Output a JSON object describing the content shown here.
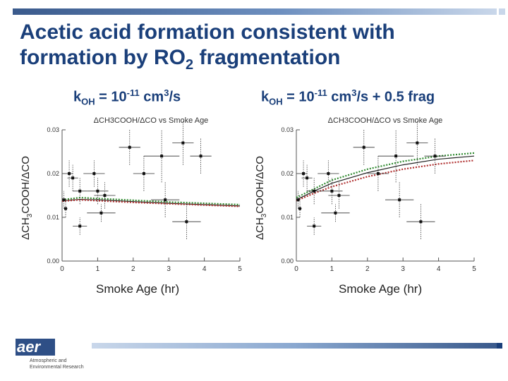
{
  "title_line1": "Acetic acid formation consistent with",
  "title_line2_pre": "formation by RO",
  "title_line2_sub": "2",
  "title_line2_post": " fragmentation",
  "panels": [
    {
      "k": "k",
      "k_sub": "OH",
      "eq": " = 10",
      "exp": "-11",
      "unit": " cm",
      "unit_sup": "3",
      "tail": "/s"
    },
    {
      "k": "k",
      "k_sub": "OH",
      "eq": " = 10",
      "exp": "-11",
      "unit": " cm",
      "unit_sup": "3",
      "tail": "/s + 0.5 frag"
    }
  ],
  "ylabel_pre": "ΔCH",
  "ylabel_sub": "3",
  "ylabel_post": "COOH/ΔCO",
  "xlabel": "Smoke Age (hr)",
  "logo": {
    "text": "aer",
    "line1": "Atmospheric and",
    "line2": "Environmental Research"
  },
  "colors": {
    "title": "#1a3f7a",
    "green_model": "#2f8a2f",
    "dark_model": "#222222",
    "red_model": "#b03030"
  },
  "chart_data": [
    {
      "type": "scatter",
      "title": "ΔCH3COOH/ΔCO vs Smoke Age",
      "xlabel": "Smoke Age (hr)",
      "ylabel": "ΔCH3COOH/ΔCO",
      "xlim": [
        0,
        5
      ],
      "ylim": [
        0,
        0.03
      ],
      "xticks": [
        "0",
        "1",
        "2",
        "3",
        "4",
        "5"
      ],
      "yticks": [
        "0.00",
        "0.01",
        "0.02",
        "0.03"
      ],
      "points": [
        {
          "x": 0.05,
          "y": 0.014,
          "xerr": 0.05,
          "yerr": 0.002
        },
        {
          "x": 0.1,
          "y": 0.012,
          "xerr": 0.05,
          "yerr": 0.002
        },
        {
          "x": 0.2,
          "y": 0.02,
          "xerr": 0.1,
          "yerr": 0.003
        },
        {
          "x": 0.3,
          "y": 0.019,
          "xerr": 0.15,
          "yerr": 0.003
        },
        {
          "x": 0.5,
          "y": 0.016,
          "xerr": 0.2,
          "yerr": 0.003
        },
        {
          "x": 0.5,
          "y": 0.008,
          "xerr": 0.2,
          "yerr": 0.002
        },
        {
          "x": 0.9,
          "y": 0.02,
          "xerr": 0.3,
          "yerr": 0.003
        },
        {
          "x": 1.0,
          "y": 0.016,
          "xerr": 0.3,
          "yerr": 0.003
        },
        {
          "x": 1.2,
          "y": 0.015,
          "xerr": 0.3,
          "yerr": 0.003
        },
        {
          "x": 1.1,
          "y": 0.011,
          "xerr": 0.4,
          "yerr": 0.002
        },
        {
          "x": 1.9,
          "y": 0.026,
          "xerr": 0.3,
          "yerr": 0.004
        },
        {
          "x": 2.3,
          "y": 0.02,
          "xerr": 0.3,
          "yerr": 0.004
        },
        {
          "x": 2.8,
          "y": 0.024,
          "xerr": 0.5,
          "yerr": 0.006
        },
        {
          "x": 2.9,
          "y": 0.014,
          "xerr": 0.4,
          "yerr": 0.004
        },
        {
          "x": 3.4,
          "y": 0.027,
          "xerr": 0.3,
          "yerr": 0.005
        },
        {
          "x": 3.9,
          "y": 0.024,
          "xerr": 0.3,
          "yerr": 0.004
        },
        {
          "x": 3.5,
          "y": 0.009,
          "xerr": 0.4,
          "yerr": 0.004
        }
      ],
      "series": [
        {
          "x": [
            0,
            0.5,
            1,
            2,
            3,
            4,
            5
          ],
          "y": [
            0.014,
            0.0145,
            0.0143,
            0.0139,
            0.0135,
            0.0132,
            0.0129
          ],
          "color": "#2f8a2f",
          "dash": "dotted"
        },
        {
          "x": [
            0,
            0.5,
            1,
            2,
            3,
            4,
            5
          ],
          "y": [
            0.0138,
            0.0141,
            0.014,
            0.0136,
            0.0132,
            0.0129,
            0.0126
          ],
          "color": "#222222",
          "dash": "solid"
        },
        {
          "x": [
            0,
            0.5,
            1,
            2,
            3,
            4,
            5
          ],
          "y": [
            0.0137,
            0.014,
            0.0138,
            0.0134,
            0.0131,
            0.0128,
            0.0125
          ],
          "color": "#b03030",
          "dash": "dotted"
        }
      ]
    },
    {
      "type": "scatter",
      "title": "ΔCH3COOH/ΔCO vs Smoke Age",
      "xlabel": "Smoke Age (hr)",
      "ylabel": "ΔCH3COOH/ΔCO",
      "xlim": [
        0,
        5
      ],
      "ylim": [
        0,
        0.03
      ],
      "xticks": [
        "0",
        "1",
        "2",
        "3",
        "4",
        "5"
      ],
      "yticks": [
        "0.00",
        "0.01",
        "0.02",
        "0.03"
      ],
      "points": [
        {
          "x": 0.05,
          "y": 0.014,
          "xerr": 0.05,
          "yerr": 0.002
        },
        {
          "x": 0.1,
          "y": 0.012,
          "xerr": 0.05,
          "yerr": 0.002
        },
        {
          "x": 0.2,
          "y": 0.02,
          "xerr": 0.1,
          "yerr": 0.003
        },
        {
          "x": 0.3,
          "y": 0.019,
          "xerr": 0.15,
          "yerr": 0.003
        },
        {
          "x": 0.5,
          "y": 0.016,
          "xerr": 0.2,
          "yerr": 0.003
        },
        {
          "x": 0.5,
          "y": 0.008,
          "xerr": 0.2,
          "yerr": 0.002
        },
        {
          "x": 0.9,
          "y": 0.02,
          "xerr": 0.3,
          "yerr": 0.003
        },
        {
          "x": 1.0,
          "y": 0.016,
          "xerr": 0.3,
          "yerr": 0.003
        },
        {
          "x": 1.2,
          "y": 0.015,
          "xerr": 0.3,
          "yerr": 0.003
        },
        {
          "x": 1.1,
          "y": 0.011,
          "xerr": 0.4,
          "yerr": 0.002
        },
        {
          "x": 1.9,
          "y": 0.026,
          "xerr": 0.3,
          "yerr": 0.004
        },
        {
          "x": 2.3,
          "y": 0.02,
          "xerr": 0.3,
          "yerr": 0.004
        },
        {
          "x": 2.8,
          "y": 0.024,
          "xerr": 0.5,
          "yerr": 0.006
        },
        {
          "x": 2.9,
          "y": 0.014,
          "xerr": 0.4,
          "yerr": 0.004
        },
        {
          "x": 3.4,
          "y": 0.027,
          "xerr": 0.3,
          "yerr": 0.005
        },
        {
          "x": 3.9,
          "y": 0.024,
          "xerr": 0.3,
          "yerr": 0.004
        },
        {
          "x": 3.5,
          "y": 0.009,
          "xerr": 0.4,
          "yerr": 0.004
        }
      ],
      "series": [
        {
          "x": [
            0,
            0.5,
            1,
            2,
            3,
            4,
            5
          ],
          "y": [
            0.0145,
            0.0165,
            0.0185,
            0.021,
            0.0228,
            0.024,
            0.0247
          ],
          "color": "#2f8a2f",
          "dash": "dotted"
        },
        {
          "x": [
            0,
            0.5,
            1,
            2,
            3,
            4,
            5
          ],
          "y": [
            0.014,
            0.016,
            0.0178,
            0.0202,
            0.022,
            0.0233,
            0.024
          ],
          "color": "#222222",
          "dash": "solid"
        },
        {
          "x": [
            0,
            0.5,
            1,
            2,
            3,
            4,
            5
          ],
          "y": [
            0.0138,
            0.0155,
            0.017,
            0.0193,
            0.021,
            0.0222,
            0.023
          ],
          "color": "#b03030",
          "dash": "dotted"
        }
      ]
    }
  ]
}
